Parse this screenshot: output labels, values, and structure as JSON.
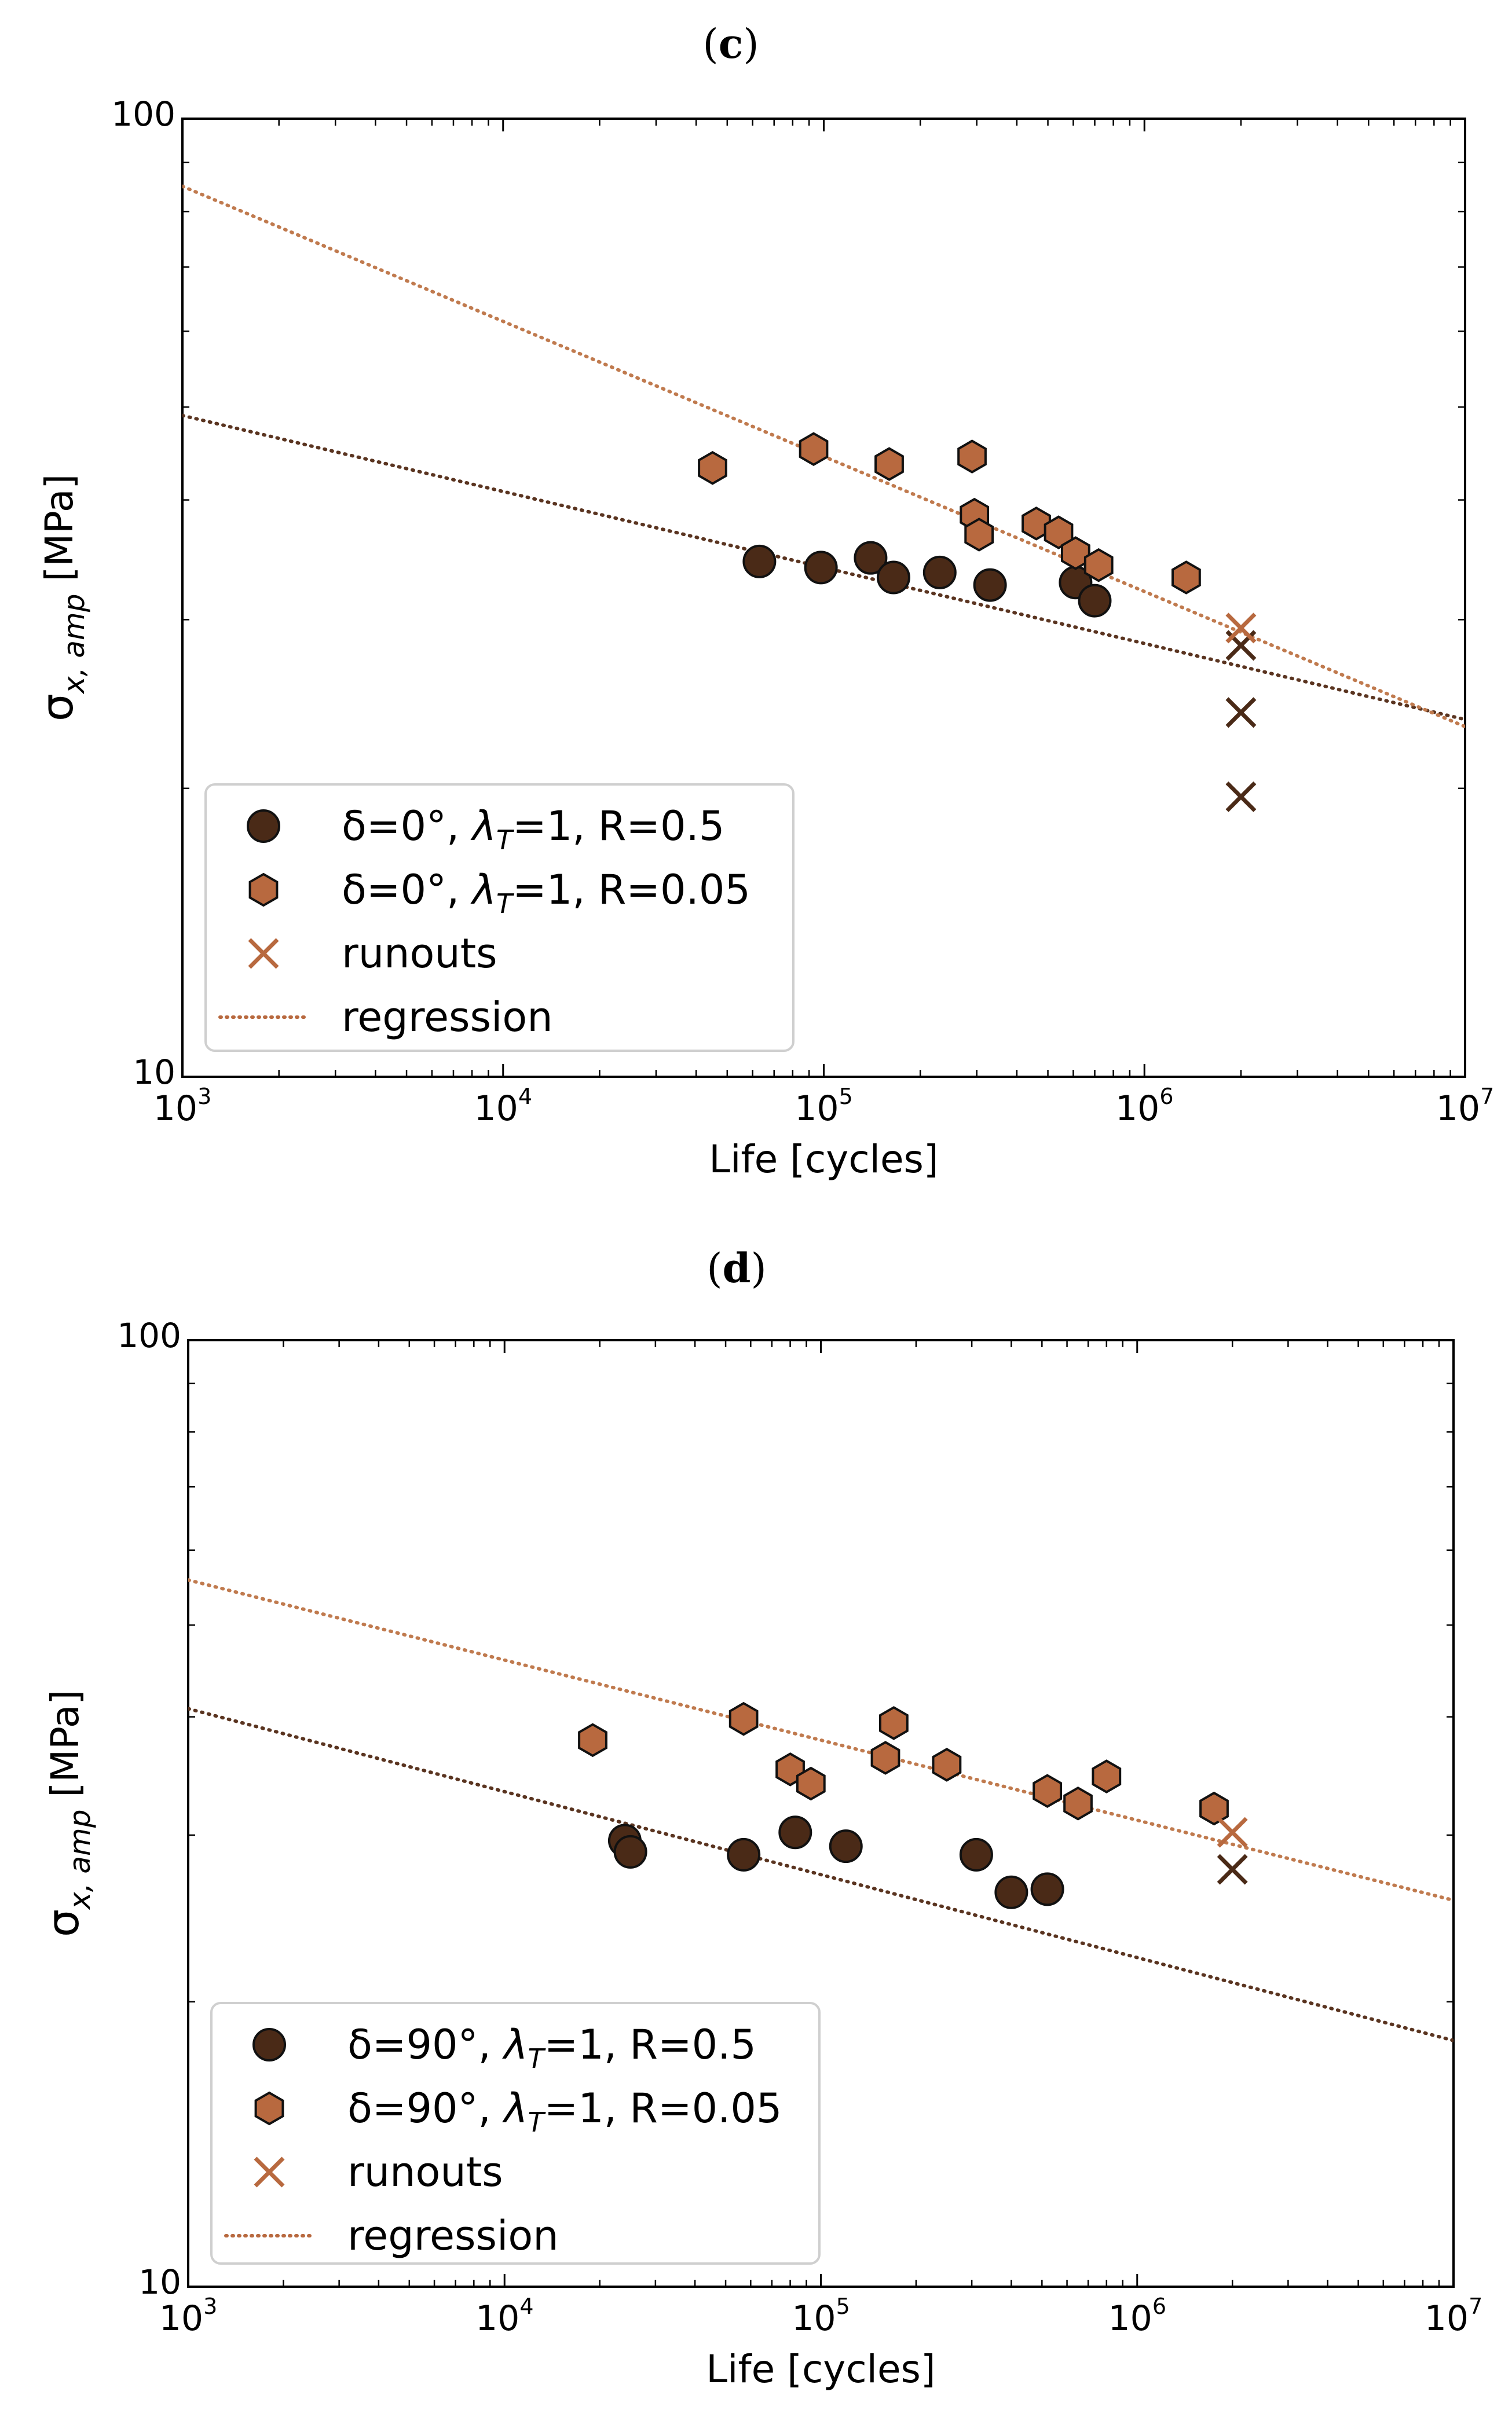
{
  "colors": {
    "dark": "#4a2a17",
    "light": "#b8693f",
    "dark_line": "#5a3420",
    "light_line": "#c07a4e"
  },
  "chart_data": [
    {
      "panel": "(c)",
      "panel_letter": "c",
      "type": "scatter",
      "scale": "log-log",
      "xlabel": "Life [cycles]",
      "ylabel": "σx, amp [MPa]",
      "ylabel_main": "σ",
      "ylabel_sub": "x, amp",
      "ylabel_unit": " [MPa]",
      "xlim": [
        1000,
        10000000
      ],
      "ylim": [
        10,
        100
      ],
      "x_ticks": [
        {
          "value": 1000,
          "base": "10",
          "exp": "3"
        },
        {
          "value": 10000,
          "base": "10",
          "exp": "4"
        },
        {
          "value": 100000,
          "base": "10",
          "exp": "5"
        },
        {
          "value": 1000000,
          "base": "10",
          "exp": "6"
        },
        {
          "value": 10000000,
          "base": "10",
          "exp": "7"
        }
      ],
      "y_ticks": [
        {
          "value": 10,
          "label": "10"
        },
        {
          "value": 100,
          "label": "100"
        }
      ],
      "legend_position": "lower-left",
      "legend": [
        {
          "marker": "circle",
          "color": "dark",
          "text_pre": "δ=0°, ",
          "text_lambda": "λ",
          "text_sub": "T",
          "text_post": "=1, R=0.5"
        },
        {
          "marker": "hexagon",
          "color": "light",
          "text_pre": "δ=0°, ",
          "text_lambda": "λ",
          "text_sub": "T",
          "text_post": "=1, R=0.05"
        },
        {
          "marker": "x",
          "color": "light",
          "text_pre": "runouts",
          "text_lambda": "",
          "text_sub": "",
          "text_post": ""
        },
        {
          "marker": "dotted-line",
          "color": "light",
          "text_pre": "regression",
          "text_lambda": "",
          "text_sub": "",
          "text_post": ""
        }
      ],
      "series": [
        {
          "name": "δ=0°, λT=1, R=0.5",
          "marker": "circle",
          "color": "dark",
          "points": [
            [
              63000,
              34.5
            ],
            [
              98000,
              34.0
            ],
            [
              140000,
              34.8
            ],
            [
              165000,
              33.2
            ],
            [
              230000,
              33.6
            ],
            [
              330000,
              32.6
            ],
            [
              610000,
              32.8
            ],
            [
              700000,
              31.4
            ]
          ]
        },
        {
          "name": "δ=0°, λT=1, R=0.05",
          "marker": "hexagon",
          "color": "light",
          "points": [
            [
              45000,
              43.2
            ],
            [
              93000,
              45.2
            ],
            [
              160000,
              43.6
            ],
            [
              290000,
              44.4
            ],
            [
              295000,
              38.6
            ],
            [
              305000,
              36.8
            ],
            [
              460000,
              37.8
            ],
            [
              540000,
              37.0
            ],
            [
              610000,
              35.2
            ],
            [
              720000,
              34.2
            ],
            [
              1350000,
              33.2
            ]
          ]
        },
        {
          "name": "runouts R=0.5",
          "marker": "x",
          "color": "dark",
          "points": [
            [
              2000000,
              28.2
            ],
            [
              2000000,
              24.0
            ],
            [
              2000000,
              19.6
            ]
          ]
        },
        {
          "name": "runouts R=0.05",
          "marker": "x",
          "color": "light",
          "points": [
            [
              2000000,
              29.4
            ]
          ]
        }
      ],
      "regression": [
        {
          "name": "regression R=0.5",
          "color": "dark_line",
          "points": [
            [
              1000,
              49.0
            ],
            [
              10000000,
              23.6
            ]
          ]
        },
        {
          "name": "regression R=0.05",
          "color": "light_line",
          "points": [
            [
              1000,
              85.0
            ],
            [
              10000000,
              23.2
            ]
          ]
        }
      ]
    },
    {
      "panel": "(d)",
      "panel_letter": "d",
      "type": "scatter",
      "scale": "log-log",
      "xlabel": "Life [cycles]",
      "ylabel": "σx, amp [MPa]",
      "ylabel_main": "σ",
      "ylabel_sub": "x, amp",
      "ylabel_unit": " [MPa]",
      "xlim": [
        1000,
        10000000
      ],
      "ylim": [
        10,
        100
      ],
      "x_ticks": [
        {
          "value": 1000,
          "base": "10",
          "exp": "3"
        },
        {
          "value": 10000,
          "base": "10",
          "exp": "4"
        },
        {
          "value": 100000,
          "base": "10",
          "exp": "5"
        },
        {
          "value": 1000000,
          "base": "10",
          "exp": "6"
        },
        {
          "value": 10000000,
          "base": "10",
          "exp": "7"
        }
      ],
      "y_ticks": [
        {
          "value": 10,
          "label": "10"
        },
        {
          "value": 100,
          "label": "100"
        }
      ],
      "legend_position": "lower-left",
      "legend": [
        {
          "marker": "circle",
          "color": "dark",
          "text_pre": "δ=90°, ",
          "text_lambda": "λ",
          "text_sub": "T",
          "text_post": "=1, R=0.5"
        },
        {
          "marker": "hexagon",
          "color": "light",
          "text_pre": "δ=90°, ",
          "text_lambda": "λ",
          "text_sub": "T",
          "text_post": "=1, R=0.05"
        },
        {
          "marker": "x",
          "color": "light",
          "text_pre": "runouts",
          "text_lambda": "",
          "text_sub": "",
          "text_post": ""
        },
        {
          "marker": "dotted-line",
          "color": "light",
          "text_pre": "regression",
          "text_lambda": "",
          "text_sub": "",
          "text_post": ""
        }
      ],
      "series": [
        {
          "name": "δ=90°, λT=1, R=0.5",
          "marker": "circle",
          "color": "dark",
          "points": [
            [
              24000,
              29.6
            ],
            [
              25000,
              28.8
            ],
            [
              57000,
              28.6
            ],
            [
              83000,
              30.2
            ],
            [
              120000,
              29.2
            ],
            [
              310000,
              28.6
            ],
            [
              400000,
              26.1
            ],
            [
              520000,
              26.3
            ]
          ]
        },
        {
          "name": "δ=90°, λT=1, R=0.05",
          "marker": "hexagon",
          "color": "light",
          "points": [
            [
              19000,
              37.8
            ],
            [
              57000,
              39.8
            ],
            [
              80000,
              35.2
            ],
            [
              93000,
              34.0
            ],
            [
              160000,
              36.2
            ],
            [
              170000,
              39.4
            ],
            [
              250000,
              35.6
            ],
            [
              520000,
              33.4
            ],
            [
              650000,
              32.4
            ],
            [
              800000,
              34.6
            ],
            [
              1750000,
              32.0
            ]
          ]
        },
        {
          "name": "runouts R=0.5",
          "marker": "x",
          "color": "dark",
          "points": [
            [
              2000000,
              27.6
            ]
          ]
        },
        {
          "name": "runouts R=0.05",
          "marker": "x",
          "color": "light",
          "points": [
            [
              2000000,
              30.2
            ]
          ]
        }
      ],
      "regression": [
        {
          "name": "regression R=0.5",
          "color": "dark_line",
          "points": [
            [
              1000,
              40.8
            ],
            [
              10000000,
              18.2
            ]
          ]
        },
        {
          "name": "regression R=0.05",
          "color": "light_line",
          "points": [
            [
              1000,
              55.8
            ],
            [
              10000000,
              25.6
            ]
          ]
        }
      ]
    }
  ]
}
